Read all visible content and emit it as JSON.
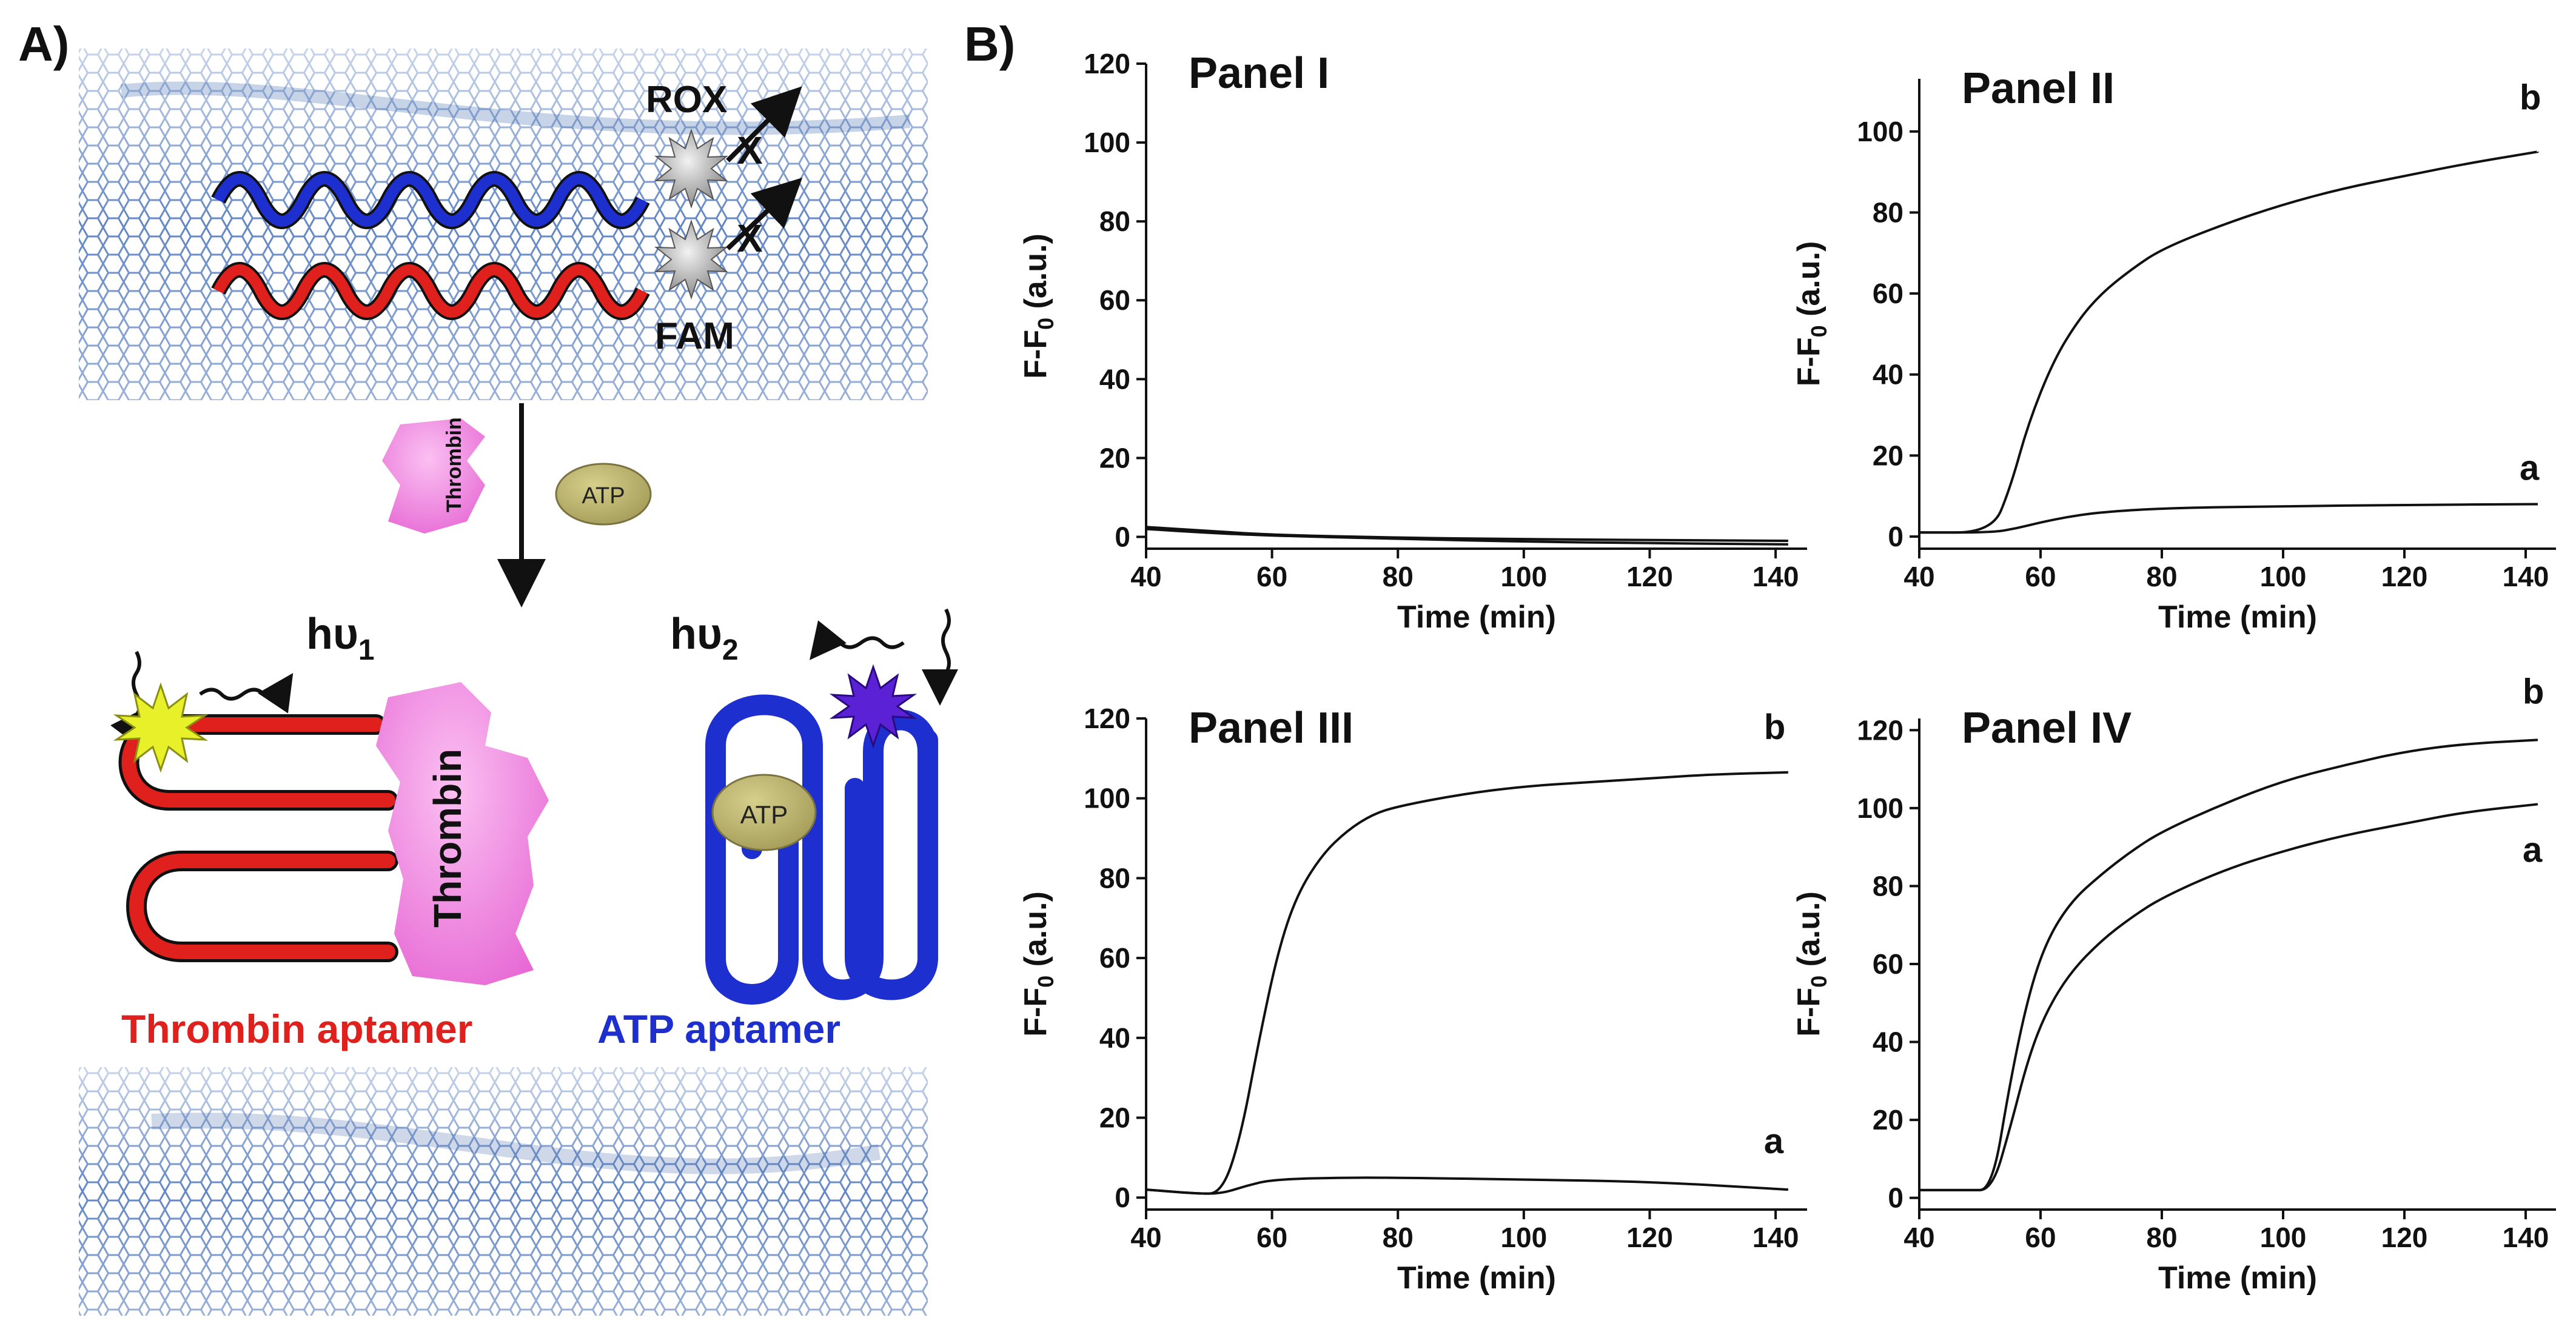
{
  "figure": {
    "panel_a_label": "A)",
    "panel_b_label": "B)",
    "dyes": {
      "top": "ROX",
      "bottom": "FAM"
    },
    "cross_mark": "X",
    "proteins": {
      "thrombin": "Thrombin",
      "atp": "ATP"
    },
    "emission": {
      "h1_main": "hυ",
      "h1_sub": "1",
      "h2_main": "hυ",
      "h2_sub": "2"
    },
    "captions": {
      "thrombin_aptamer": "Thrombin aptamer",
      "atp_aptamer": "ATP aptamer"
    },
    "colors": {
      "thrombin_strand": "#e0201c",
      "atp_strand": "#1e2fd0",
      "thrombin_protein": "#f27ce0",
      "atp_molecule": "#b9b06a",
      "fam_star": "#e8f02a",
      "rox_star": "#5a22d4",
      "graphene": "#2f5fb0"
    }
  },
  "chart_data": [
    {
      "type": "line",
      "title": "Panel I",
      "xlabel": "Time (min)",
      "ylabel": "F-F0 (a.u.)",
      "xlim": [
        40,
        145
      ],
      "ylim": [
        -3,
        120
      ],
      "xticks": [
        40,
        60,
        80,
        100,
        120,
        140
      ],
      "yticks": [
        0,
        20,
        40,
        60,
        80,
        100,
        120
      ],
      "series": [
        {
          "label": "",
          "x": [
            40,
            50,
            60,
            80,
            100,
            120,
            142
          ],
          "y": [
            2.5,
            1.5,
            0.5,
            -0.2,
            -0.6,
            -0.8,
            -1.0
          ]
        },
        {
          "label": "",
          "x": [
            40,
            50,
            60,
            80,
            100,
            120,
            142
          ],
          "y": [
            2.0,
            1.0,
            0.3,
            -0.5,
            -1.2,
            -1.6,
            -1.9
          ]
        }
      ]
    },
    {
      "type": "line",
      "title": "Panel II",
      "xlabel": "Time (min)",
      "ylabel": "F-F0 (a.u.)",
      "xlim": [
        40,
        145
      ],
      "ylim": [
        -3,
        113
      ],
      "xticks": [
        40,
        60,
        80,
        100,
        120,
        140
      ],
      "yticks": [
        0,
        20,
        40,
        60,
        80,
        100
      ],
      "series": [
        {
          "label": "a",
          "x": [
            40,
            52,
            56,
            60,
            65,
            70,
            80,
            100,
            120,
            142
          ],
          "y": [
            1,
            1,
            2,
            3.5,
            5,
            6,
            7,
            7.5,
            7.8,
            8
          ]
        },
        {
          "label": "b",
          "x": [
            40,
            52,
            55,
            58,
            62,
            66,
            70,
            75,
            80,
            90,
            100,
            110,
            120,
            130,
            142
          ],
          "y": [
            1,
            1,
            12,
            28,
            43,
            53,
            60,
            66,
            71,
            77,
            82,
            86,
            89,
            92,
            95
          ]
        }
      ]
    },
    {
      "type": "line",
      "title": "Panel III",
      "xlabel": "Time (min)",
      "ylabel": "F-F0 (a.u.)",
      "xlim": [
        40,
        145
      ],
      "ylim": [
        -3,
        120
      ],
      "xticks": [
        40,
        60,
        80,
        100,
        120,
        140
      ],
      "yticks": [
        0,
        20,
        40,
        60,
        80,
        100,
        120
      ],
      "series": [
        {
          "label": "a",
          "x": [
            40,
            48,
            52,
            56,
            60,
            70,
            80,
            100,
            120,
            142
          ],
          "y": [
            2,
            1,
            1,
            3,
            4.5,
            5,
            5,
            4.5,
            4,
            2
          ]
        },
        {
          "label": "b",
          "x": [
            40,
            48,
            52,
            55,
            58,
            61,
            64,
            68,
            72,
            76,
            80,
            90,
            100,
            110,
            120,
            130,
            142
          ],
          "y": [
            2,
            1,
            1,
            15,
            40,
            62,
            76,
            86,
            92,
            96,
            98,
            101,
            103,
            104,
            105,
            106,
            106.5
          ]
        }
      ]
    },
    {
      "type": "line",
      "title": "Panel IV",
      "xlabel": "Time (min)",
      "ylabel": "F-F0 (a.u.)",
      "xlim": [
        40,
        145
      ],
      "ylim": [
        -3,
        123
      ],
      "xticks": [
        40,
        60,
        80,
        100,
        120,
        140
      ],
      "yticks": [
        0,
        20,
        40,
        60,
        80,
        100,
        120
      ],
      "series": [
        {
          "label": "a",
          "x": [
            40,
            48,
            52,
            55,
            58,
            61,
            65,
            70,
            75,
            80,
            90,
            100,
            110,
            120,
            130,
            142
          ],
          "y": [
            2,
            2,
            2,
            18,
            36,
            48,
            58,
            66,
            72,
            77,
            84,
            89,
            93,
            96,
            99,
            101
          ]
        },
        {
          "label": "b",
          "x": [
            40,
            48,
            52,
            55,
            58,
            61,
            65,
            70,
            75,
            80,
            90,
            100,
            110,
            120,
            130,
            142
          ],
          "y": [
            2,
            2,
            2,
            30,
            52,
            66,
            76,
            83,
            89,
            94,
            101,
            107,
            111,
            114.5,
            116.5,
            117.5
          ]
        }
      ]
    }
  ]
}
